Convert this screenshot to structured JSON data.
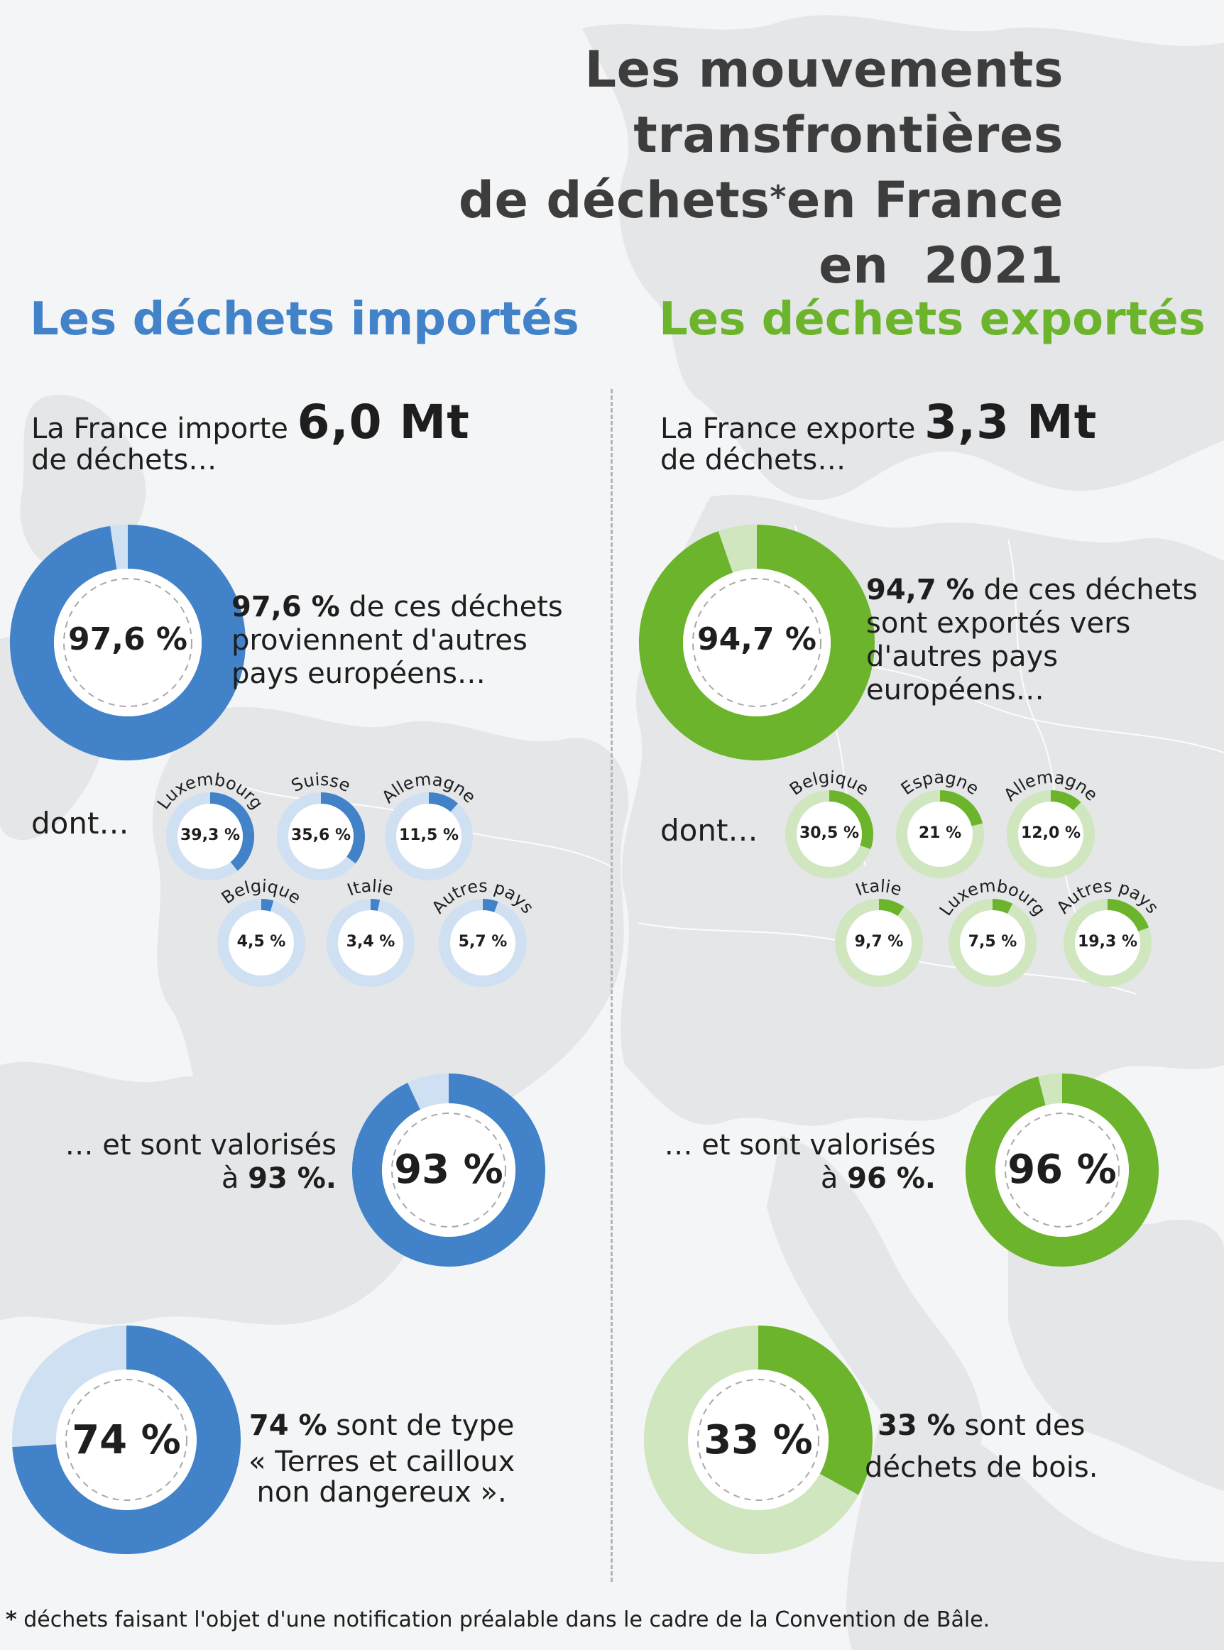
{
  "title": {
    "line1": "Les mouvements transfrontières",
    "line2_a": "de déchets",
    "line2_star": "*",
    "line2_b": "en France",
    "line3": "en  2021"
  },
  "imported": {
    "heading": "Les déchets importés",
    "intro_a": "La France importe ",
    "intro_amount": "6,0 Mt",
    "intro_b": "de déchets…",
    "european": {
      "value": 97.6,
      "label": "97,6 %",
      "text_bold": "97,6 %",
      "text_1": " de ces déchets",
      "text_2": "proviennent d'autres",
      "text_3": "pays européens…"
    },
    "dont_label": "dont…",
    "countries": [
      {
        "name": "Luxembourg",
        "value": 39.3,
        "label": "39,3 %"
      },
      {
        "name": "Suisse",
        "value": 35.6,
        "label": "35,6 %"
      },
      {
        "name": "Allemagne",
        "value": 11.5,
        "label": "11,5 %"
      },
      {
        "name": "Belgique",
        "value": 4.5,
        "label": "4,5 %"
      },
      {
        "name": "Italie",
        "value": 3.4,
        "label": "3,4 %"
      },
      {
        "name": "Autres pays",
        "value": 5.7,
        "label": "5,7 %"
      }
    ],
    "recovered": {
      "value": 93,
      "label": "93 %",
      "text_1": "… et sont valorisés",
      "text_2_a": "à ",
      "text_2_bold": "93 %."
    },
    "type": {
      "value": 74,
      "label": "74 %",
      "text_bold": "74 %",
      "text_1": " sont de type",
      "text_2": "« Terres et cailloux",
      "text_3": "non dangereux »."
    }
  },
  "exported": {
    "heading": "Les déchets exportés",
    "intro_a": "La France exporte ",
    "intro_amount": "3,3 Mt",
    "intro_b": "de déchets…",
    "european": {
      "value": 94.7,
      "label": "94,7 %",
      "text_bold": "94,7 %",
      "text_1": " de ces déchets",
      "text_2": "sont exportés vers",
      "text_3": "d'autres pays",
      "text_4": "européens…"
    },
    "dont_label": "dont…",
    "countries": [
      {
        "name": "Belgique",
        "value": 30.5,
        "label": "30,5 %"
      },
      {
        "name": "Espagne",
        "value": 21,
        "label": "21 %"
      },
      {
        "name": "Allemagne",
        "value": 12.0,
        "label": "12,0 %"
      },
      {
        "name": "Italie",
        "value": 9.7,
        "label": "9,7 %"
      },
      {
        "name": "Luxembourg",
        "value": 7.5,
        "label": "7,5 %"
      },
      {
        "name": "Autres pays",
        "value": 19.3,
        "label": "19,3 %"
      }
    ],
    "recovered": {
      "value": 96,
      "label": "96 %",
      "text_1": "… et sont valorisés",
      "text_2_a": "à ",
      "text_2_bold": "96 %."
    },
    "wood": {
      "value": 33,
      "label": "33 %",
      "text_bold": "33 %",
      "text_1": " sont des",
      "text_2": "déchets de bois."
    }
  },
  "footnote": {
    "star": "*",
    "text": " déchets faisant l'objet d'une notification préalable dans le cadre de la Convention de Bâle."
  },
  "colors": {
    "blue": "#4182c9",
    "blue_light": "#cfe0f2",
    "green": "#6cb42b",
    "green_light": "#cfe6bf",
    "map_land": "#e6e8ea",
    "background": "#f4f5f6"
  }
}
